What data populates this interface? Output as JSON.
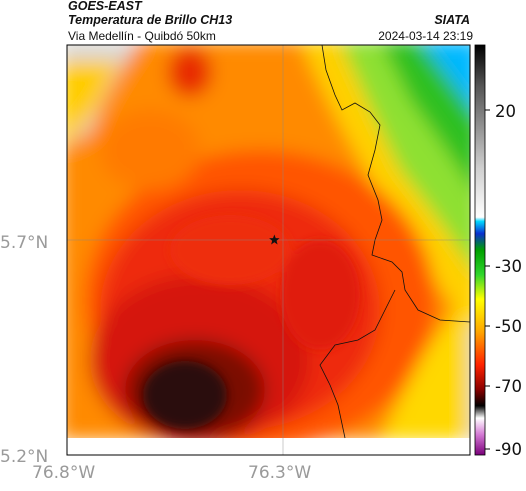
{
  "header": {
    "title": "GOES-EAST",
    "subtitle": "Temperatura de Brillo CH13",
    "location": "Via Medellín - Quibdó 50km",
    "organization": "SIATA",
    "datetime": "2024-03-14 23:19"
  },
  "chart_data": {
    "type": "heatmap",
    "title": "Temperatura de Brillo CH13",
    "x_ticks": [
      "76.8°W",
      "76.3°W"
    ],
    "y_ticks": [
      "5.7°N",
      "5.2°N"
    ],
    "xlim": [
      -76.8,
      -76.0
    ],
    "ylim": [
      5.2,
      6.2
    ],
    "grid": true,
    "marker": {
      "lon": -76.32,
      "lat": 5.7,
      "symbol": "star"
    },
    "colorbar": {
      "ticks": [
        "20",
        "-30",
        "-50",
        "-70",
        "-90"
      ],
      "range": [
        -95,
        40
      ]
    },
    "colors": {
      "coldest": "#2a0a0a",
      "cold": "#d8170d",
      "mid": "#ff6a00",
      "warm_orange": "#ffa900",
      "yellow": "#ffe400",
      "green": "#2fd62c",
      "cyan": "#00c6ff",
      "blue": "#0a2fd0",
      "gray": "#d8d8d8"
    }
  }
}
